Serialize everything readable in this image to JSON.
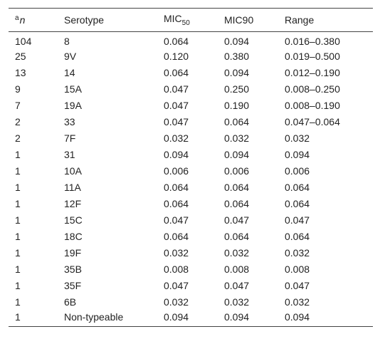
{
  "header": {
    "col1_sup": "a",
    "col1_label": "n",
    "col2": "Serotype",
    "col3_main": "MIC",
    "col3_sub": "50",
    "col4": "MIC90",
    "col5": "Range"
  },
  "rows": [
    {
      "n": "104",
      "serotype": "8",
      "mic50": "0.064",
      "mic90": "0.094",
      "range": "0.016–0.380"
    },
    {
      "n": "25",
      "serotype": "9V",
      "mic50": "0.120",
      "mic90": "0.380",
      "range": "0.019–0.500"
    },
    {
      "n": "13",
      "serotype": "14",
      "mic50": "0.064",
      "mic90": "0.094",
      "range": "0.012–0.190"
    },
    {
      "n": "9",
      "serotype": "15A",
      "mic50": "0.047",
      "mic90": "0.250",
      "range": "0.008–0.250"
    },
    {
      "n": "7",
      "serotype": "19A",
      "mic50": "0.047",
      "mic90": "0.190",
      "range": "0.008–0.190"
    },
    {
      "n": "2",
      "serotype": "33",
      "mic50": "0.047",
      "mic90": "0.064",
      "range": "0.047–0.064"
    },
    {
      "n": "2",
      "serotype": "7F",
      "mic50": "0.032",
      "mic90": "0.032",
      "range": "0.032"
    },
    {
      "n": "1",
      "serotype": "31",
      "mic50": "0.094",
      "mic90": "0.094",
      "range": "0.094"
    },
    {
      "n": "1",
      "serotype": "10A",
      "mic50": "0.006",
      "mic90": "0.006",
      "range": "0.006"
    },
    {
      "n": "1",
      "serotype": "11A",
      "mic50": "0.064",
      "mic90": "0.064",
      "range": "0.064"
    },
    {
      "n": "1",
      "serotype": "12F",
      "mic50": "0.064",
      "mic90": "0.064",
      "range": "0.064"
    },
    {
      "n": "1",
      "serotype": "15C",
      "mic50": "0.047",
      "mic90": "0.047",
      "range": "0.047"
    },
    {
      "n": "1",
      "serotype": "18C",
      "mic50": "0.064",
      "mic90": "0.064",
      "range": "0.064"
    },
    {
      "n": "1",
      "serotype": "19F",
      "mic50": "0.032",
      "mic90": "0.032",
      "range": "0.032"
    },
    {
      "n": "1",
      "serotype": "35B",
      "mic50": "0.008",
      "mic90": "0.008",
      "range": "0.008"
    },
    {
      "n": "1",
      "serotype": "35F",
      "mic50": "0.047",
      "mic90": "0.047",
      "range": "0.047"
    },
    {
      "n": "1",
      "serotype": "6B",
      "mic50": "0.032",
      "mic90": "0.032",
      "range": "0.032"
    },
    {
      "n": "1",
      "serotype": "Non-typeable",
      "mic50": "0.094",
      "mic90": "0.094",
      "range": "0.094"
    }
  ]
}
